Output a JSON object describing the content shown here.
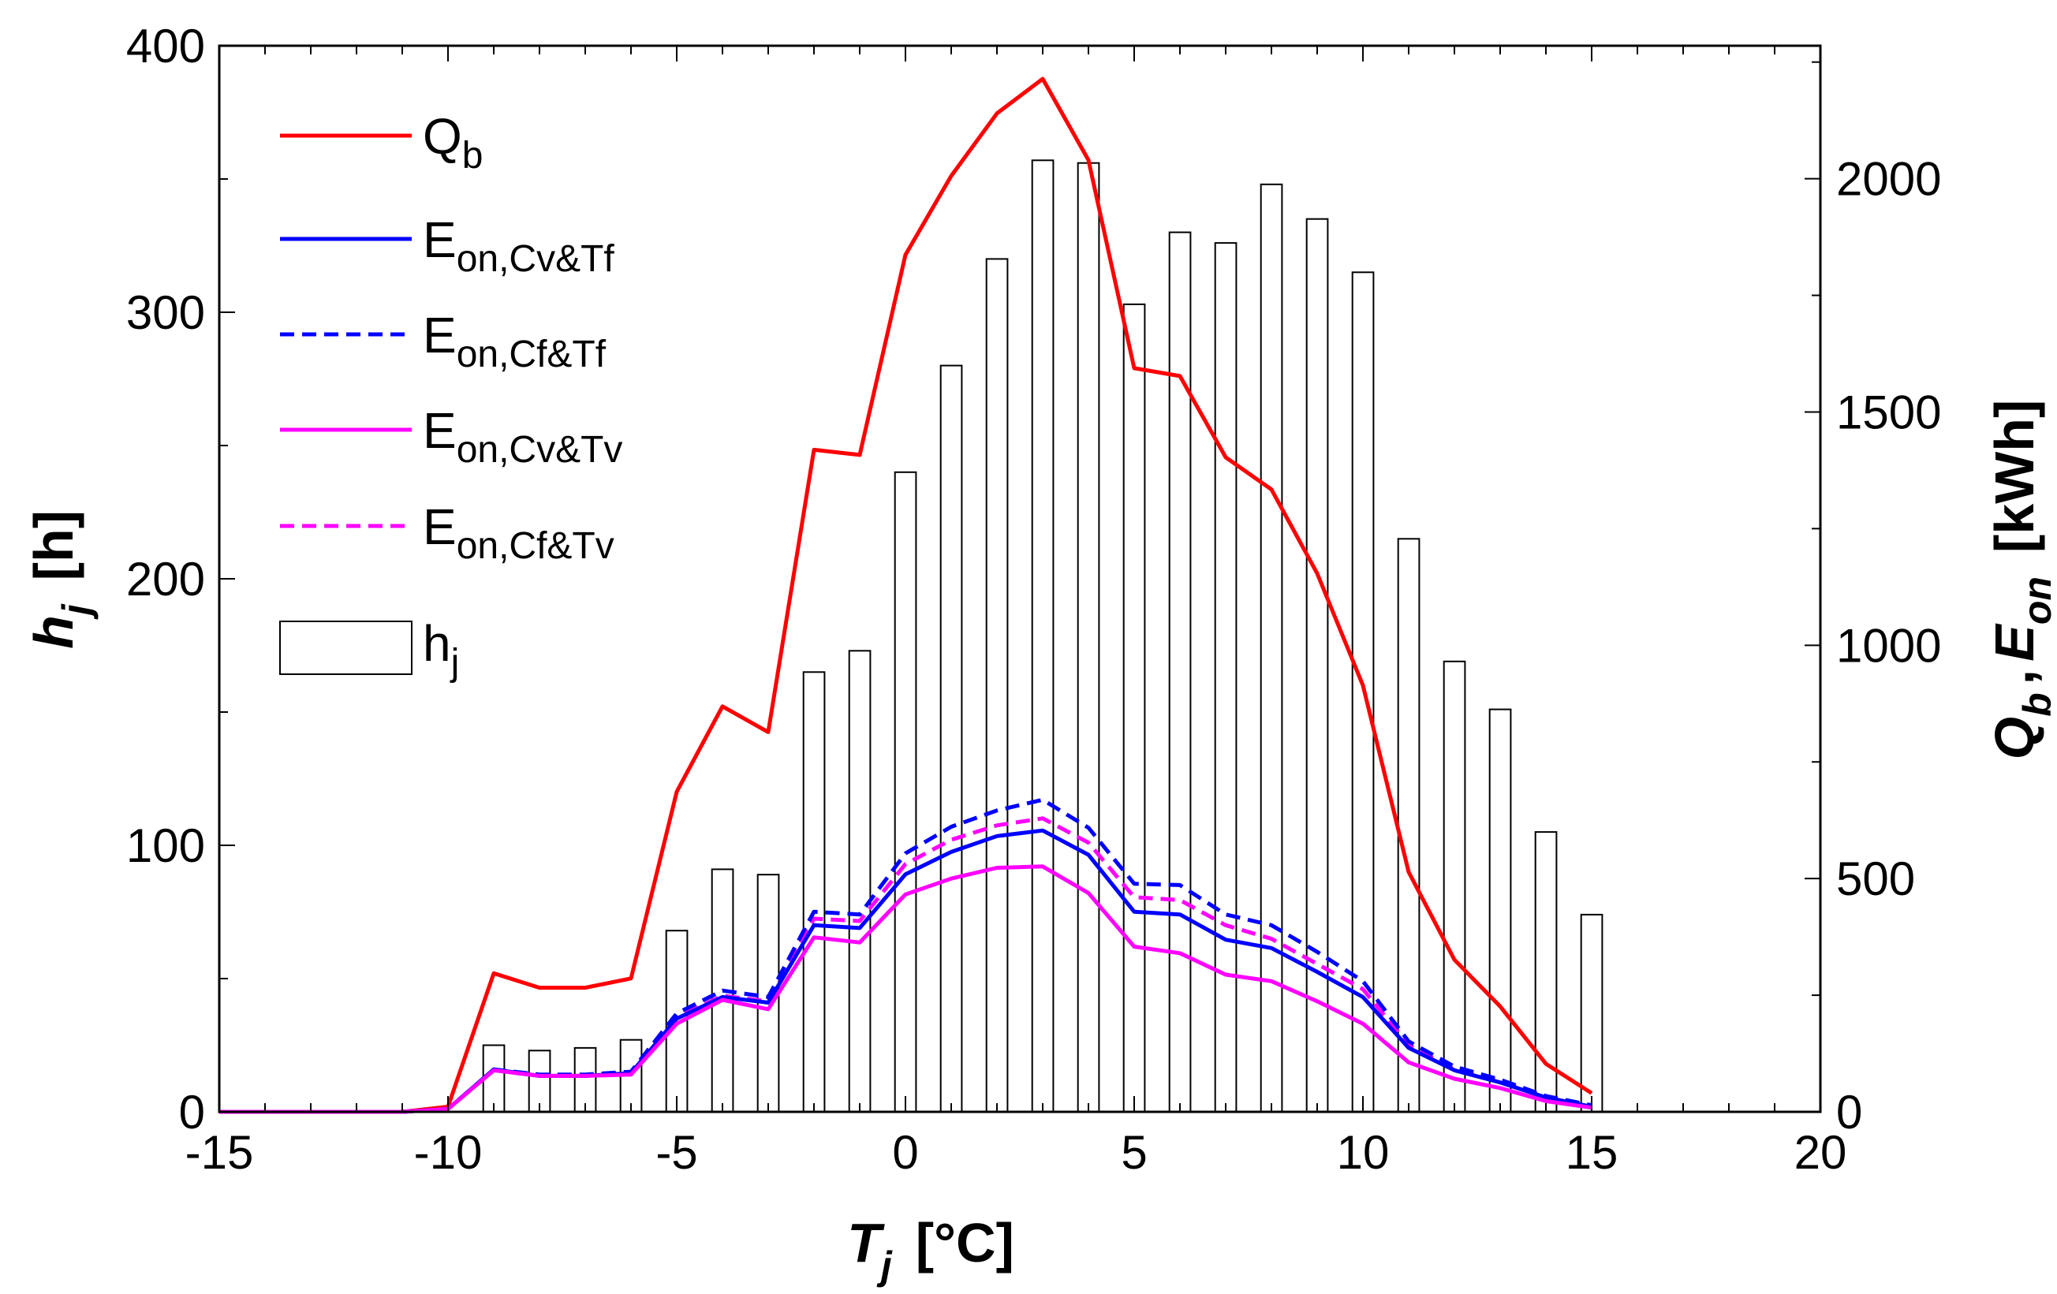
{
  "chart_data": {
    "type": "bar+line",
    "xlabel": {
      "main": "T",
      "sub": "j",
      "unit": "[°C]"
    },
    "ylabel_left": {
      "main": "h",
      "sub": "j",
      "unit": "[h]"
    },
    "ylabel_right": {
      "q": "Q",
      "q_sub": "b",
      "sep": ",",
      "e": "E",
      "e_sub": "on",
      "unit": "[kWh]"
    },
    "xlim": [
      -15,
      20
    ],
    "ylim_left": [
      0,
      400
    ],
    "ylim_right": [
      0,
      2285
    ],
    "x_ticks": [
      "-15",
      "-10",
      "-5",
      "0",
      "5",
      "10",
      "15",
      "20"
    ],
    "y_ticks_left": [
      "0",
      "100",
      "200",
      "300",
      "400"
    ],
    "y_ticks_right": [
      "0",
      "500",
      "1000",
      "1500",
      "2000"
    ],
    "bars": {
      "name": "h",
      "sub": "j",
      "x": [
        -9,
        -8,
        -7,
        -6,
        -5,
        -4,
        -3,
        -2,
        -1,
        0,
        1,
        2,
        3,
        4,
        5,
        6,
        7,
        8,
        9,
        10,
        11,
        12,
        13,
        14,
        15
      ],
      "values": [
        25,
        23,
        24,
        27,
        68,
        91,
        89,
        165,
        173,
        240,
        280,
        320,
        357,
        356,
        303,
        330,
        326,
        348,
        335,
        315,
        215,
        169,
        151,
        105,
        74
      ]
    },
    "series": [
      {
        "name": "Q",
        "sub": "b",
        "color": "#ff0000",
        "dash": "solid",
        "x": [
          -15,
          -14,
          -13,
          -12,
          -11,
          -10,
          -9,
          -8,
          -7,
          -6,
          -5,
          -4,
          -3,
          -2,
          -1,
          0,
          1,
          2,
          3,
          4,
          5,
          6,
          7,
          8,
          9,
          10,
          11,
          12,
          13,
          14,
          15
        ],
        "values": [
          0,
          0,
          0,
          0,
          0,
          11,
          297,
          266,
          266,
          286,
          686,
          869,
          814,
          1419,
          1408,
          1837,
          2006,
          2140,
          2214,
          2040,
          1594,
          1577,
          1403,
          1334,
          1154,
          914,
          514,
          326,
          226,
          103,
          40
        ]
      },
      {
        "name": "E",
        "sub": "on,Cv&Tf",
        "color": "#0000ff",
        "dash": "solid",
        "x": [
          -15,
          -14,
          -13,
          -12,
          -11,
          -10,
          -9,
          -8,
          -7,
          -6,
          -5,
          -4,
          -3,
          -2,
          -1,
          0,
          1,
          2,
          3,
          4,
          5,
          6,
          7,
          8,
          9,
          10,
          11,
          12,
          13,
          14,
          15
        ],
        "values": [
          0,
          0,
          0,
          0,
          0,
          6,
          91,
          77,
          77,
          83,
          200,
          246,
          234,
          400,
          394,
          509,
          557,
          591,
          603,
          551,
          429,
          423,
          369,
          351,
          300,
          246,
          137,
          89,
          63,
          31,
          11
        ]
      },
      {
        "name": "E",
        "sub": "on,Cf&Tf",
        "color": "#0000ff",
        "dash": "dashed",
        "x": [
          -15,
          -14,
          -13,
          -12,
          -11,
          -10,
          -9,
          -8,
          -7,
          -6,
          -5,
          -4,
          -3,
          -2,
          -1,
          0,
          1,
          2,
          3,
          4,
          5,
          6,
          7,
          8,
          9,
          10,
          11,
          12,
          13,
          14,
          15
        ],
        "values": [
          0,
          0,
          0,
          0,
          0,
          6,
          91,
          80,
          80,
          86,
          211,
          260,
          246,
          429,
          423,
          554,
          611,
          646,
          669,
          609,
          489,
          486,
          423,
          400,
          343,
          280,
          151,
          97,
          69,
          34,
          14
        ]
      },
      {
        "name": "E",
        "sub": "on,Cv&Tv",
        "color": "#ff00ff",
        "dash": "solid",
        "x": [
          -15,
          -14,
          -13,
          -12,
          -11,
          -10,
          -9,
          -8,
          -7,
          -6,
          -5,
          -4,
          -3,
          -2,
          -1,
          0,
          1,
          2,
          3,
          4,
          5,
          6,
          7,
          8,
          9,
          10,
          11,
          12,
          13,
          14,
          15
        ],
        "values": [
          0,
          0,
          0,
          0,
          0,
          6,
          89,
          77,
          77,
          80,
          189,
          240,
          220,
          374,
          363,
          466,
          500,
          523,
          526,
          469,
          354,
          340,
          294,
          280,
          237,
          189,
          106,
          71,
          51,
          23,
          9
        ]
      },
      {
        "name": "E",
        "sub": "on,Cf&Tv",
        "color": "#ff00ff",
        "dash": "dashed",
        "x": [
          -15,
          -14,
          -13,
          -12,
          -11,
          -10,
          -9,
          -8,
          -7,
          -6,
          -5,
          -4,
          -3,
          -2,
          -1,
          0,
          1,
          2,
          3,
          4,
          5,
          6,
          7,
          8,
          9,
          10,
          11,
          12,
          13,
          14,
          15
        ],
        "values": [
          0,
          0,
          0,
          0,
          0,
          6,
          89,
          77,
          77,
          83,
          203,
          249,
          237,
          414,
          409,
          531,
          583,
          614,
          629,
          577,
          460,
          454,
          400,
          371,
          317,
          263,
          143,
          91,
          66,
          31,
          11
        ]
      }
    ]
  }
}
